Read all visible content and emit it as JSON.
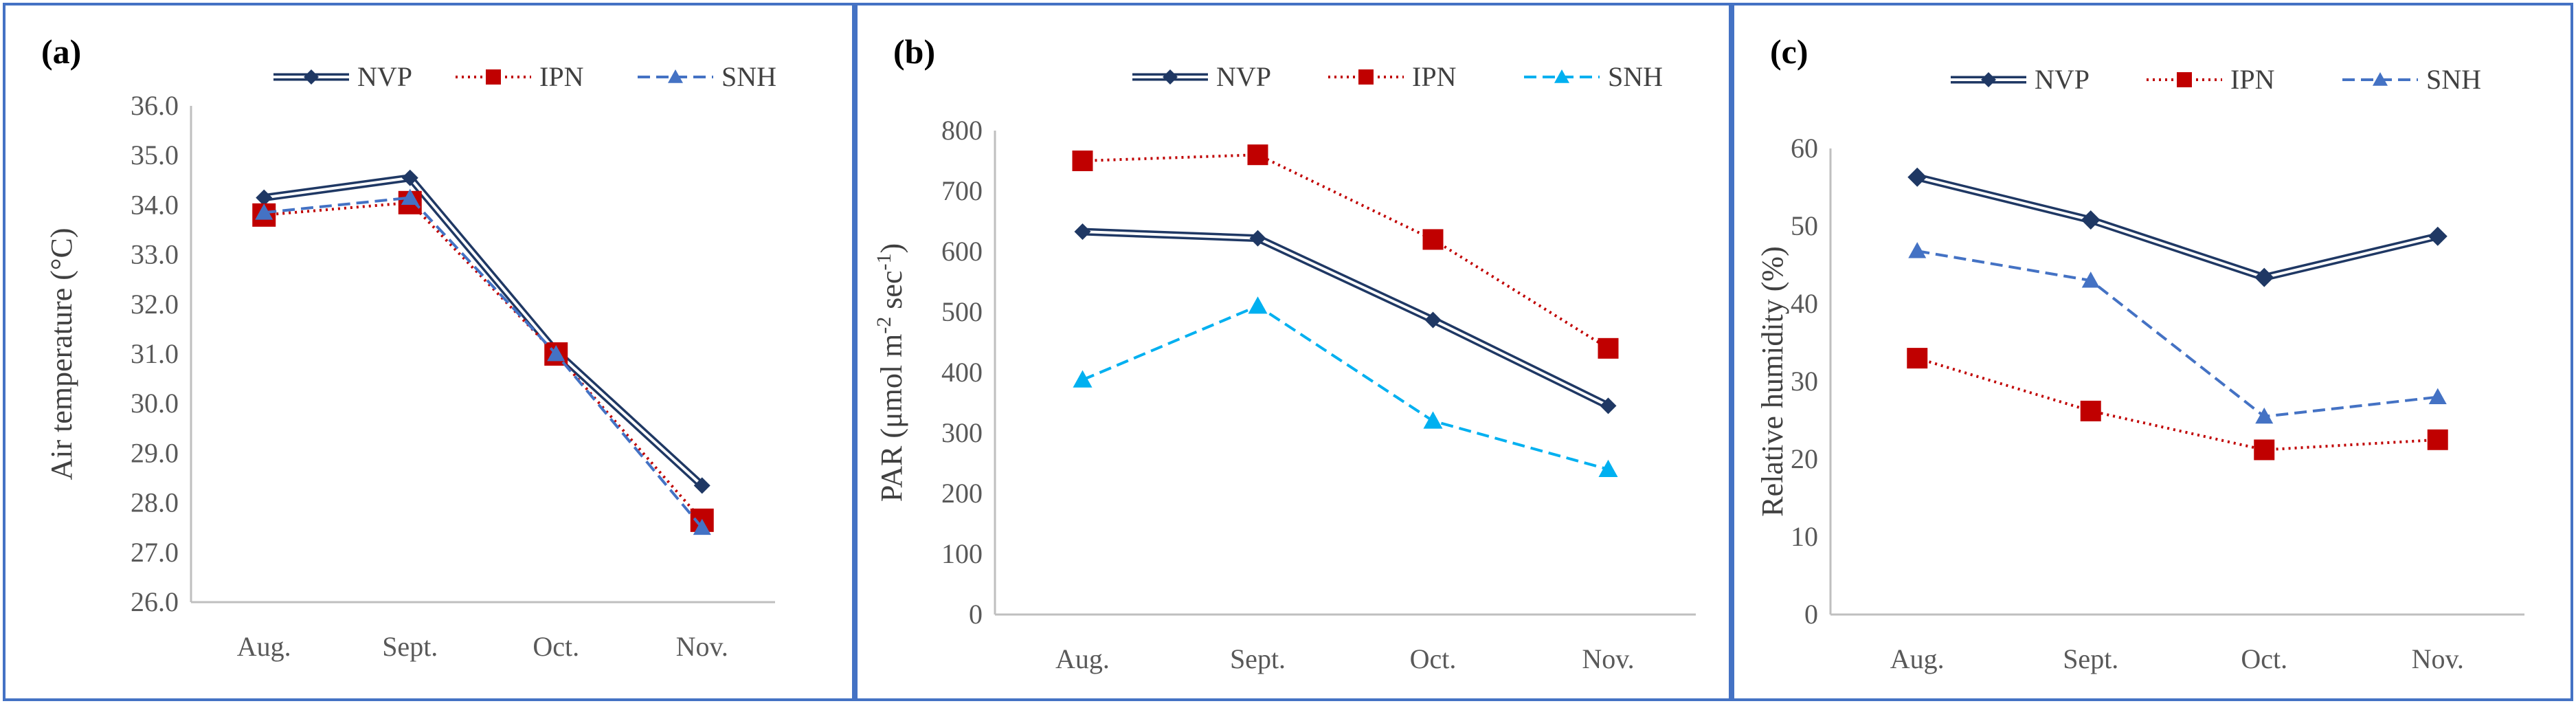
{
  "chart_data": [
    {
      "type": "line",
      "panel_label": "(a)",
      "categories": [
        "Aug.",
        "Sept.",
        "Oct.",
        "Nov."
      ],
      "ylabel": "Air temperature (°C)",
      "ylim": [
        26.0,
        36.0
      ],
      "ystep": 1.0,
      "ydecimals": 1,
      "series": [
        {
          "name": "NVP",
          "values": [
            34.15,
            34.55,
            31.05,
            28.35
          ]
        },
        {
          "name": "IPN",
          "values": [
            33.8,
            34.05,
            31.0,
            27.65
          ]
        },
        {
          "name": "SNH",
          "values": [
            33.85,
            34.15,
            31.0,
            27.5
          ]
        }
      ]
    },
    {
      "type": "line",
      "panel_label": "(b)",
      "categories": [
        "Aug.",
        "Sept.",
        "Oct.",
        "Nov."
      ],
      "ylabel_parts": [
        "PAR (μmol m",
        "-2",
        " sec",
        "-1",
        ")"
      ],
      "ylim": [
        0,
        800
      ],
      "ystep": 100,
      "ydecimals": 0,
      "series": [
        {
          "name": "NVP",
          "values": [
            633,
            622,
            487,
            345
          ]
        },
        {
          "name": "IPN",
          "values": [
            750,
            760,
            620,
            440
          ]
        },
        {
          "name": "SNH",
          "values": [
            388,
            510,
            320,
            240
          ]
        }
      ]
    },
    {
      "type": "line",
      "panel_label": "(c)",
      "categories": [
        "Aug.",
        "Sept.",
        "Oct.",
        "Nov."
      ],
      "ylabel": "Relative humidity (%)",
      "ylim": [
        0,
        60
      ],
      "ystep": 10,
      "ydecimals": 0,
      "series": [
        {
          "name": "NVP",
          "values": [
            56.3,
            50.8,
            43.4,
            48.7
          ]
        },
        {
          "name": "IPN",
          "values": [
            33.0,
            26.2,
            21.2,
            22.5
          ]
        },
        {
          "name": "SNH",
          "values": [
            46.8,
            43.0,
            25.5,
            28.0
          ]
        }
      ]
    }
  ],
  "series_styles": {
    "NVP": {
      "color": "#1f3864",
      "marker": "diamond",
      "line": "double"
    },
    "IPN": {
      "color": "#c00000",
      "marker": "square",
      "line": "dotted"
    },
    "SNH_a": {
      "color": "#4472c4",
      "marker": "triangle",
      "line": "dashed"
    },
    "SNH_b": {
      "color": "#00b0f0",
      "marker": "triangle",
      "line": "dashed"
    },
    "SNH_c": {
      "color": "#4472c4",
      "marker": "triangle",
      "line": "dashed"
    },
    "border": "#4472c4",
    "axis": "#bfbfbf"
  }
}
